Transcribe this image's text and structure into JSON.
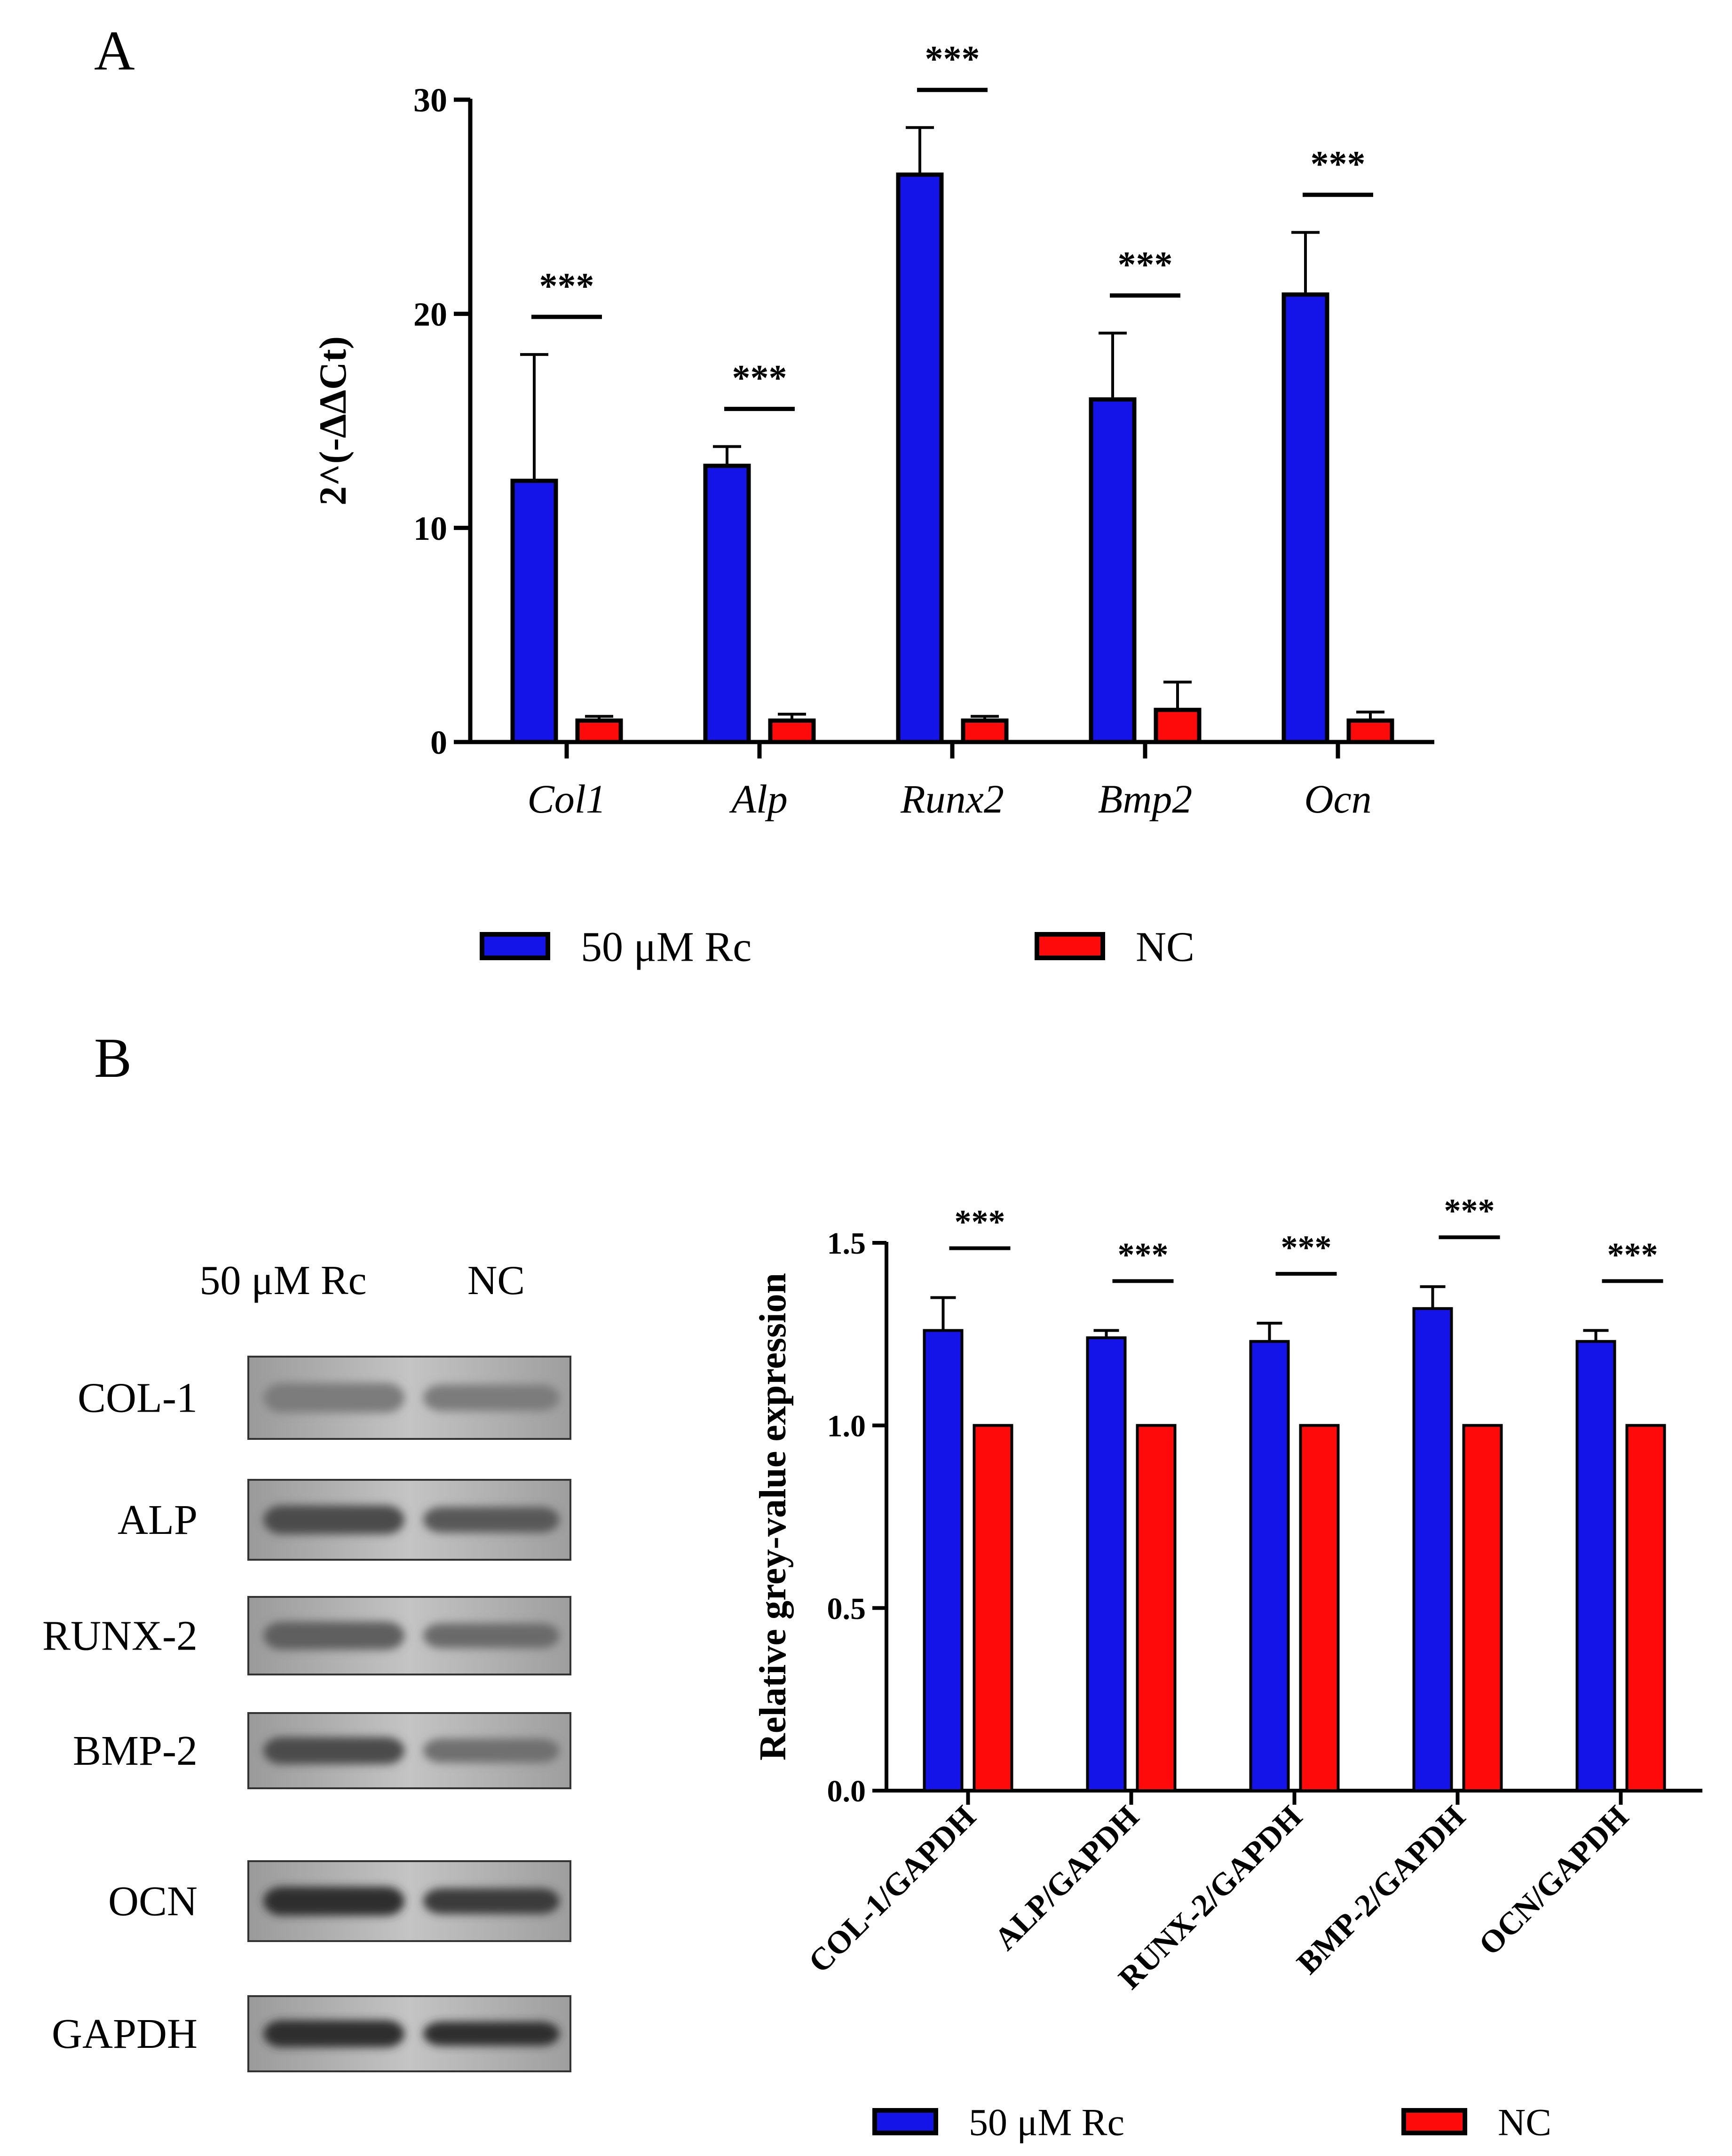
{
  "colors": {
    "series1": "#1414e8",
    "series2": "#ff0a0a",
    "axis": "#000000",
    "background": "#ffffff"
  },
  "panels": [
    {
      "label": "A"
    },
    {
      "label": "B"
    }
  ],
  "blot": {
    "lane_labels": [
      "50 μM Rc",
      "NC"
    ],
    "rows": [
      "COL-1",
      "ALP",
      "RUNX-2",
      "BMP-2",
      "OCN",
      "GAPDH"
    ]
  },
  "chart_data": [
    {
      "type": "bar",
      "panel": "A",
      "categories": [
        "Col1",
        "Alp",
        "Runx2",
        "Bmp2",
        "Ocn"
      ],
      "category_style": "italic",
      "ylabel": "2^(-ΔΔCt)",
      "xlabel": "",
      "ylim": [
        0,
        30
      ],
      "yticks": [
        0,
        10,
        20,
        30
      ],
      "series": [
        {
          "name": "50 μM Rc",
          "values": [
            12.2,
            12.9,
            26.5,
            16.0,
            20.9
          ],
          "errors": [
            5.9,
            0.9,
            2.2,
            3.1,
            2.9
          ]
        },
        {
          "name": "NC",
          "values": [
            1.0,
            1.0,
            1.0,
            1.5,
            1.0
          ],
          "errors": [
            0.2,
            0.3,
            0.2,
            1.3,
            0.4
          ]
        }
      ],
      "significance": [
        "***",
        "***",
        "***",
        "***",
        "***"
      ],
      "legend": "bottom",
      "grid": false
    },
    {
      "type": "bar",
      "panel": "B",
      "categories": [
        "COL-1/GAPDH",
        "ALP/GAPDH",
        "RUNX-2/GAPDH",
        "BMP-2/GAPDH",
        "OCN/GAPDH"
      ],
      "category_style": "bold-rotated",
      "ylabel": "Relative grey-value expression",
      "xlabel": "",
      "ylim": [
        0,
        1.5
      ],
      "yticks": [
        "0.0",
        "0.5",
        "1.0",
        "1.5"
      ],
      "series": [
        {
          "name": "50 μM Rc",
          "values": [
            1.26,
            1.24,
            1.23,
            1.32,
            1.23
          ],
          "errors": [
            0.09,
            0.02,
            0.05,
            0.06,
            0.03
          ]
        },
        {
          "name": "NC",
          "values": [
            1.0,
            1.0,
            1.0,
            1.0,
            1.0
          ],
          "errors": [
            0,
            0,
            0,
            0,
            0
          ]
        }
      ],
      "significance": [
        "***",
        "***",
        "***",
        "***",
        "***"
      ],
      "legend": "bottom",
      "grid": false
    }
  ]
}
